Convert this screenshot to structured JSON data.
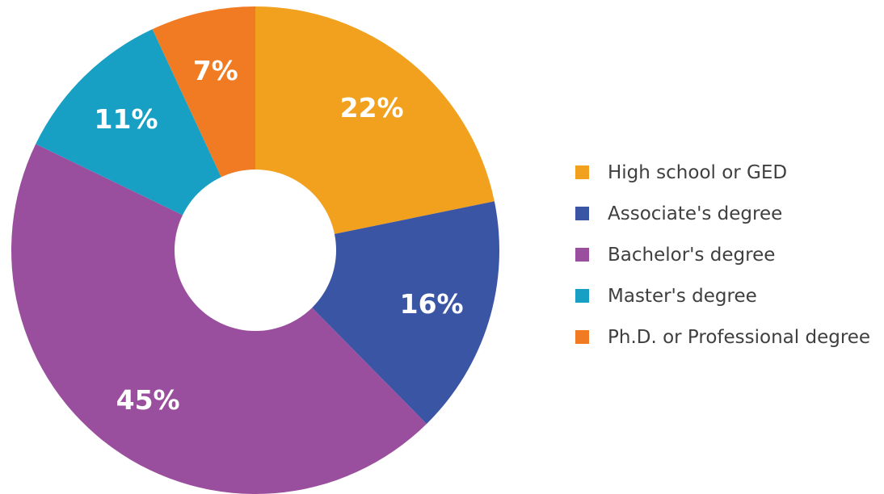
{
  "chart_data": {
    "type": "pie",
    "donut": true,
    "title": "",
    "categories": [
      "High school or GED",
      "Associate's degree",
      "Bachelor's degree",
      "Master's degree",
      "Ph.D. or Professional degree"
    ],
    "values": [
      22,
      16,
      45,
      11,
      7
    ],
    "labels": [
      "22%",
      "16%",
      "45%",
      "11%",
      "7%"
    ],
    "colors": [
      "#f2a11f",
      "#3b55a5",
      "#9a4e9e",
      "#17a0c4",
      "#f07b22"
    ],
    "legend_position": "right"
  }
}
